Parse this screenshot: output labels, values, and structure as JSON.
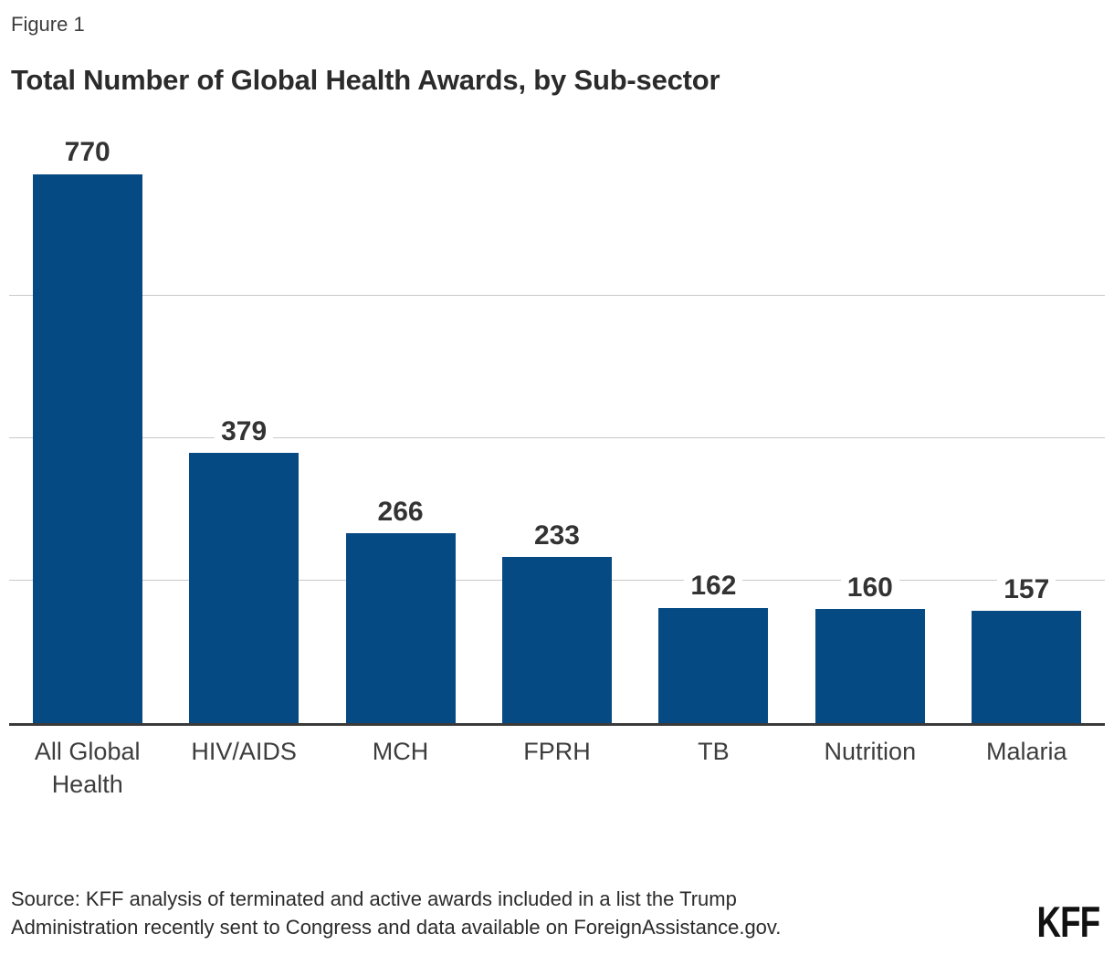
{
  "figure_label": "Figure 1",
  "title": "Total Number of Global Health Awards, by Sub-sector",
  "chart_data": {
    "type": "bar",
    "title": "Total Number of Global Health Awards, by Sub-sector",
    "categories": [
      "All Global Health",
      "HIV/AIDS",
      "MCH",
      "FPRH",
      "TB",
      "Nutrition",
      "Malaria"
    ],
    "values": [
      770,
      379,
      266,
      233,
      162,
      160,
      157
    ],
    "xlabel": "",
    "ylabel": "",
    "ylim": [
      0,
      830
    ],
    "gridlines": [
      200,
      400,
      600
    ],
    "grid": "horizontal-only",
    "legend": "none",
    "bar_color": "#064a84",
    "data_labels": "above-bars"
  },
  "source": {
    "lines": [
      "Source: KFF analysis of terminated and active awards included in a list the Trump",
      "Administration recently sent to Congress and data available on ForeignAssistance.gov."
    ]
  },
  "logo_text": "KFF",
  "colors": {
    "bar": "#064a84",
    "title": "#2b2b2b",
    "value_label": "#333333",
    "axis_line": "#3a3a3a",
    "gridline": "#c9c9c9"
  }
}
